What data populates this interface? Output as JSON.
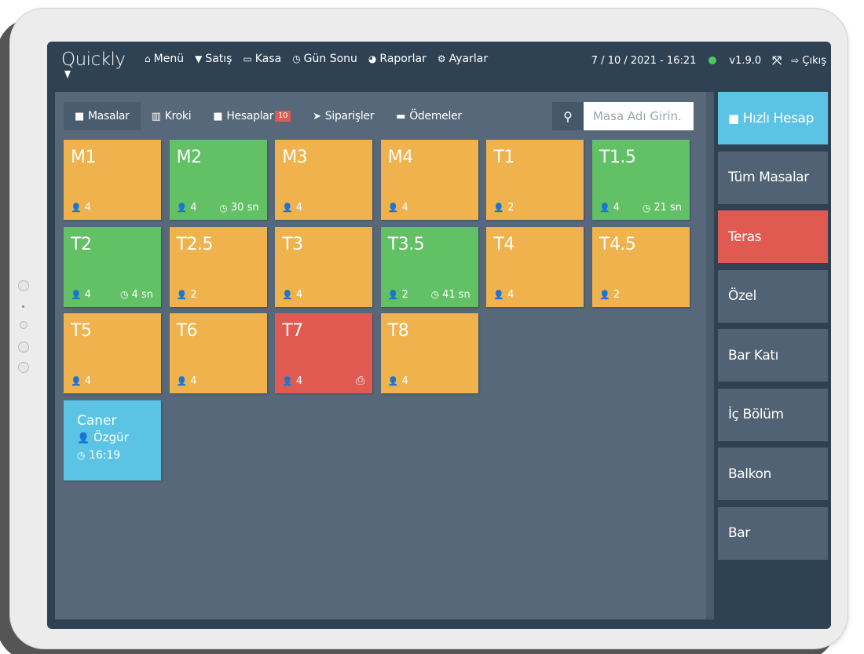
{
  "app": {
    "logo": "Quickly",
    "nav": [
      {
        "icon": "home-icon",
        "glyph": "⌂",
        "label": "Menü"
      },
      {
        "icon": "cocktail-icon",
        "glyph": "▼",
        "label": "Satış"
      },
      {
        "icon": "cash-icon",
        "glyph": "▭",
        "label": "Kasa"
      },
      {
        "icon": "clock-icon",
        "glyph": "◷",
        "label": "Gün Sonu"
      },
      {
        "icon": "pie-chart-icon",
        "glyph": "◕",
        "label": "Raporlar"
      },
      {
        "icon": "cogs-icon",
        "glyph": "⚙",
        "label": "Ayarlar"
      }
    ],
    "datetime": "7 / 10 / 2021 - 16:21",
    "version": "v1.9.0",
    "logout_label": "Çıkış",
    "status_color": "#4cc85a"
  },
  "tabs": [
    {
      "icon": "square-icon",
      "glyph": "■",
      "label": "Masalar",
      "active": true
    },
    {
      "icon": "map-icon",
      "glyph": "▥",
      "label": "Kroki"
    },
    {
      "icon": "sticky-note-icon",
      "glyph": "■",
      "label": "Hesaplar",
      "badge": "10"
    },
    {
      "icon": "paper-plane-icon",
      "glyph": "➤",
      "label": "Siparişler"
    },
    {
      "icon": "credit-card-icon",
      "glyph": "▬",
      "label": "Ödemeler"
    }
  ],
  "search": {
    "placeholder": "Masa Adı Girin."
  },
  "tables": [
    {
      "name": "M1",
      "guests": "4",
      "color": "orange"
    },
    {
      "name": "M2",
      "guests": "4",
      "timer": "30 sn",
      "color": "green"
    },
    {
      "name": "M3",
      "guests": "4",
      "color": "orange"
    },
    {
      "name": "M4",
      "guests": "4",
      "color": "orange"
    },
    {
      "name": "T1",
      "guests": "2",
      "color": "orange"
    },
    {
      "name": "T1.5",
      "guests": "4",
      "timer": "21 sn",
      "color": "green"
    },
    {
      "name": "T2",
      "guests": "4",
      "timer": "4 sn",
      "color": "green"
    },
    {
      "name": "T2.5",
      "guests": "2",
      "color": "orange"
    },
    {
      "name": "T3",
      "guests": "4",
      "color": "orange"
    },
    {
      "name": "T3.5",
      "guests": "2",
      "timer": "41 sn",
      "color": "green"
    },
    {
      "name": "T4",
      "guests": "4",
      "color": "orange"
    },
    {
      "name": "T4.5",
      "guests": "2",
      "color": "orange"
    },
    {
      "name": "T5",
      "guests": "4",
      "color": "orange"
    },
    {
      "name": "T6",
      "guests": "4",
      "color": "orange"
    },
    {
      "name": "T7",
      "guests": "4",
      "color": "red",
      "print": true
    },
    {
      "name": "T8",
      "guests": "4",
      "color": "orange"
    }
  ],
  "special_table": {
    "name": "Caner",
    "user": "Özgür",
    "time": "16:19",
    "color": "blue"
  },
  "sidebar": {
    "quick_label": "Hızlı Hesap",
    "items": [
      "Tüm Masalar",
      "Teras",
      "Özel",
      "Bar Katı",
      "İç Bölüm",
      "Balkon",
      "Bar"
    ],
    "active_item": "Teras"
  },
  "colors": {
    "orange": "#f0b24c",
    "green": "#62c065",
    "red": "#e05a52",
    "blue": "#5bc4e5"
  }
}
